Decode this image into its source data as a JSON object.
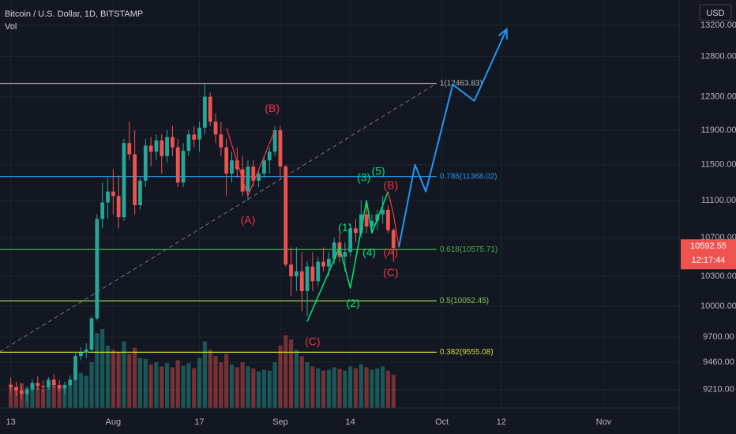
{
  "header": {
    "symbol": "Bitcoin / U.S. Dollar, 1D, BITSTAMP",
    "volume_label": "Vol"
  },
  "price_scale": {
    "currency": "USD",
    "current_price": "10592.55",
    "countdown": "12:17:44"
  },
  "colors": {
    "background": "#131722",
    "bull": "#26a69a",
    "bear": "#ef5350",
    "fib_1": "#b2b5be",
    "fib_0786": "#2196f3",
    "fib_0618": "#4caf50",
    "fib_05": "#8bc34a",
    "fib_0382": "#cddc39",
    "wave_green": "#00e676",
    "wave_red": "#f23645",
    "projection": "#2196f3"
  },
  "chart_data": {
    "type": "candlestick",
    "interval": "1D",
    "y_scale": "log",
    "ylim": [
      9050,
      13450
    ],
    "xlim": [
      -2,
      124
    ],
    "x_ticks": [
      {
        "i": 0,
        "label": "13"
      },
      {
        "i": 19,
        "label": "Aug"
      },
      {
        "i": 35,
        "label": "17"
      },
      {
        "i": 50,
        "label": "Sep"
      },
      {
        "i": 63,
        "label": "14"
      },
      {
        "i": 80,
        "label": "Oct"
      },
      {
        "i": 91,
        "label": "12"
      },
      {
        "i": 110,
        "label": "Nov"
      }
    ],
    "y_ticks": [
      13200,
      12800,
      12300,
      11900,
      11500,
      11100,
      10700,
      10300,
      10000,
      9700,
      9460,
      9210
    ],
    "candles": [
      [
        9250,
        9320,
        9180,
        9230,
        58
      ],
      [
        9230,
        9280,
        9150,
        9200,
        52
      ],
      [
        9200,
        9260,
        9120,
        9170,
        60
      ],
      [
        9170,
        9240,
        9100,
        9210,
        48
      ],
      [
        9210,
        9300,
        9190,
        9270,
        55
      ],
      [
        9270,
        9330,
        9200,
        9240,
        50
      ],
      [
        9240,
        9290,
        9180,
        9230,
        45
      ],
      [
        9230,
        9320,
        9210,
        9300,
        62
      ],
      [
        9300,
        9350,
        9220,
        9250,
        58
      ],
      [
        9250,
        9300,
        9190,
        9220,
        49
      ],
      [
        9220,
        9280,
        9170,
        9250,
        52
      ],
      [
        9250,
        9340,
        9230,
        9300,
        60
      ],
      [
        9300,
        9560,
        9290,
        9520,
        95
      ],
      [
        9520,
        9600,
        9480,
        9550,
        84
      ],
      [
        9550,
        9640,
        9500,
        9580,
        78
      ],
      [
        9580,
        9900,
        9560,
        9880,
        110
      ],
      [
        9880,
        10950,
        9860,
        10900,
        180
      ],
      [
        10900,
        11300,
        10800,
        11080,
        190
      ],
      [
        11080,
        11350,
        10900,
        11200,
        150
      ],
      [
        11200,
        11450,
        10950,
        11150,
        140
      ],
      [
        11150,
        11380,
        10800,
        10920,
        135
      ],
      [
        10920,
        11800,
        10880,
        11750,
        160
      ],
      [
        11750,
        12000,
        11550,
        11620,
        130
      ],
      [
        11620,
        11900,
        10950,
        11050,
        145
      ],
      [
        11050,
        11350,
        11000,
        11320,
        120
      ],
      [
        11320,
        11800,
        11250,
        11720,
        118
      ],
      [
        11720,
        11820,
        11480,
        11650,
        105
      ],
      [
        11650,
        11850,
        11550,
        11780,
        110
      ],
      [
        11780,
        11850,
        11400,
        11600,
        100
      ],
      [
        11600,
        11900,
        11520,
        11820,
        108
      ],
      [
        11820,
        11950,
        11600,
        11700,
        98
      ],
      [
        11700,
        11800,
        11250,
        11300,
        115
      ],
      [
        11300,
        11750,
        11250,
        11660,
        102
      ],
      [
        11660,
        11900,
        11600,
        11850,
        108
      ],
      [
        11850,
        11950,
        11700,
        11790,
        96
      ],
      [
        11790,
        12000,
        11650,
        11930,
        120
      ],
      [
        11930,
        12450,
        11850,
        12300,
        160
      ],
      [
        12300,
        12350,
        11950,
        12000,
        140
      ],
      [
        12000,
        12100,
        11750,
        11850,
        125
      ],
      [
        11850,
        12000,
        11600,
        11700,
        110
      ],
      [
        11700,
        11800,
        11150,
        11400,
        130
      ],
      [
        11400,
        11650,
        11300,
        11550,
        105
      ],
      [
        11550,
        11700,
        11350,
        11450,
        98
      ],
      [
        11450,
        11600,
        11150,
        11200,
        110
      ],
      [
        11200,
        11550,
        11100,
        11480,
        100
      ],
      [
        11480,
        11550,
        11250,
        11320,
        95
      ],
      [
        11320,
        11450,
        11250,
        11400,
        88
      ],
      [
        11400,
        11600,
        11350,
        11550,
        92
      ],
      [
        11550,
        11700,
        11400,
        11650,
        90
      ],
      [
        11650,
        11950,
        11600,
        11900,
        110
      ],
      [
        11900,
        11950,
        11350,
        11480,
        150
      ],
      [
        11480,
        11500,
        10400,
        10420,
        175
      ],
      [
        10420,
        10600,
        10100,
        10300,
        165
      ],
      [
        10300,
        10600,
        10150,
        10350,
        140
      ],
      [
        10350,
        10550,
        9950,
        10150,
        125
      ],
      [
        10150,
        10450,
        9900,
        10400,
        110
      ],
      [
        10400,
        10550,
        10150,
        10250,
        100
      ],
      [
        10250,
        10500,
        10200,
        10450,
        95
      ],
      [
        10450,
        10600,
        10350,
        10400,
        90
      ],
      [
        10400,
        10550,
        10300,
        10480,
        92
      ],
      [
        10480,
        10700,
        10420,
        10650,
        98
      ],
      [
        10650,
        10750,
        10450,
        10500,
        94
      ],
      [
        10500,
        10650,
        10350,
        10550,
        90
      ],
      [
        10550,
        10850,
        10500,
        10800,
        100
      ],
      [
        10800,
        10900,
        10650,
        10750,
        96
      ],
      [
        10750,
        11100,
        10700,
        10950,
        105
      ],
      [
        10950,
        11050,
        10750,
        10820,
        98
      ],
      [
        10820,
        10950,
        10750,
        10880,
        92
      ],
      [
        10880,
        11000,
        10780,
        10950,
        95
      ],
      [
        10950,
        11150,
        10850,
        11000,
        100
      ],
      [
        11000,
        11050,
        10750,
        10780,
        90
      ],
      [
        10780,
        10800,
        10450,
        10592,
        80
      ]
    ],
    "fib_levels": [
      {
        "level": "1",
        "price": 12463.83,
        "label": "1(12463.83)",
        "color_key": "fib_1",
        "i_start": -2,
        "i_end": 79
      },
      {
        "level": "0.786",
        "price": 11368.02,
        "label": "0.786(11368.02)",
        "color_key": "fib_0786",
        "i_start": -2,
        "i_end": 79
      },
      {
        "level": "0.618",
        "price": 10575.71,
        "label": "0.618(10575.71)",
        "color_key": "fib_0618",
        "i_start": -2,
        "i_end": 79
      },
      {
        "level": "0.5",
        "price": 10052.45,
        "label": "0.5(10052.45)",
        "color_key": "fib_05",
        "i_start": -2,
        "i_end": 79
      },
      {
        "level": "0.382",
        "price": 9555.08,
        "label": "0.382(9555.08)",
        "color_key": "fib_0382",
        "i_start": -2,
        "i_end": 79
      }
    ],
    "trend_line": {
      "from": [
        -2,
        9560
      ],
      "to": [
        79,
        12463.83
      ],
      "color_key": "fib_1"
    },
    "wave_green_path": [
      [
        55,
        9850
      ],
      [
        61,
        10600
      ],
      [
        63,
        10180
      ],
      [
        66,
        11100
      ],
      [
        67,
        10750
      ],
      [
        70,
        11200
      ]
    ],
    "wave_red_path_1": [
      [
        40,
        11930
      ],
      [
        44,
        11150
      ],
      [
        49,
        11900
      ]
    ],
    "wave_red_path_2": [
      [
        70,
        11200
      ],
      [
        71,
        10950
      ],
      [
        72,
        10600
      ]
    ],
    "projection_path": [
      [
        72,
        10600
      ],
      [
        75,
        11500
      ],
      [
        77,
        11200
      ],
      [
        82,
        12450
      ],
      [
        86,
        12250
      ],
      [
        92,
        13150
      ]
    ],
    "wave_labels": [
      {
        "text": "(1)",
        "i": 62,
        "p": 10800,
        "color_key": "wave_green"
      },
      {
        "text": "(2)",
        "i": 63.5,
        "p": 10020,
        "color_key": "wave_green"
      },
      {
        "text": "(3)",
        "i": 65.5,
        "p": 11350,
        "color_key": "wave_green"
      },
      {
        "text": "(4)",
        "i": 66.5,
        "p": 10540,
        "color_key": "wave_green"
      },
      {
        "text": "(5)",
        "i": 68.2,
        "p": 11420,
        "color_key": "wave_green"
      },
      {
        "text": "(B)",
        "i": 48.5,
        "p": 12150,
        "color_key": "wave_red"
      },
      {
        "text": "(A)",
        "i": 44,
        "p": 10880,
        "color_key": "wave_red"
      },
      {
        "text": "(C)",
        "i": 56,
        "p": 9650,
        "color_key": "wave_red"
      },
      {
        "text": "(B)",
        "i": 70.5,
        "p": 11260,
        "color_key": "wave_red"
      },
      {
        "text": "(A)",
        "i": 70.5,
        "p": 10540,
        "color_key": "wave_red"
      },
      {
        "text": "(C)",
        "i": 70.5,
        "p": 10330,
        "color_key": "wave_red"
      }
    ]
  }
}
